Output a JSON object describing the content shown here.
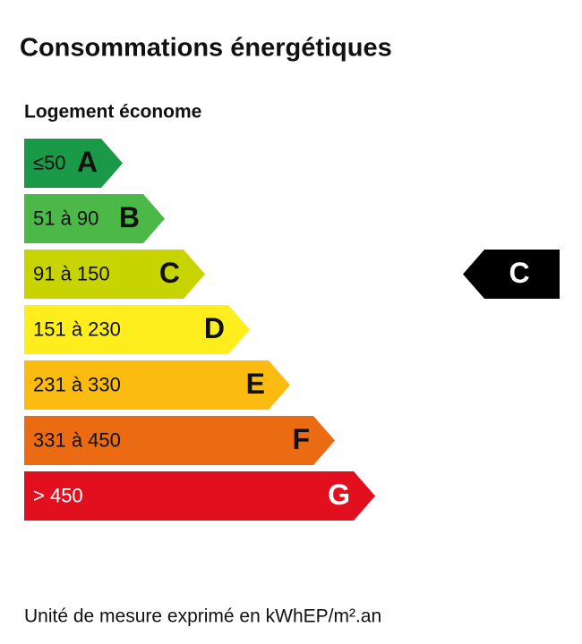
{
  "header": {
    "title": "Consommations énergétiques",
    "subtitle": "Logement économe"
  },
  "classes": [
    {
      "range": "≤50",
      "letter": "A",
      "color": "#1a9a48",
      "text_color": "#111111"
    },
    {
      "range": "51 à 90",
      "letter": "B",
      "color": "#4cb848",
      "text_color": "#111111"
    },
    {
      "range": "91 à 150",
      "letter": "C",
      "color": "#c8d400",
      "text_color": "#111111"
    },
    {
      "range": "151 à 230",
      "letter": "D",
      "color": "#ffee1d",
      "text_color": "#111111"
    },
    {
      "range": "231 à 330",
      "letter": "E",
      "color": "#fbbb10",
      "text_color": "#111111"
    },
    {
      "range": "331 à 450",
      "letter": "F",
      "color": "#ea6b12",
      "text_color": "#111111"
    },
    {
      "range": "> 450",
      "letter": "G",
      "color": "#e2101f",
      "text_color": "#ffffff"
    }
  ],
  "current": {
    "letter": "C",
    "class_index": 2
  },
  "footer": "Unité de mesure exprimé en kWhEP/m².an"
}
